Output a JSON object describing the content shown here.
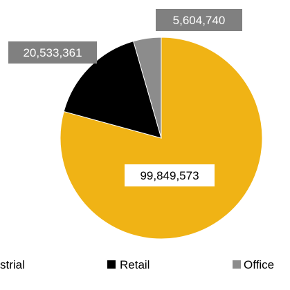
{
  "chart_data": {
    "type": "pie",
    "title": "",
    "slices": [
      {
        "label": "Industrial",
        "value": 99849573,
        "display": "99,849,573",
        "color": "#F0B315"
      },
      {
        "label": "Retail",
        "value": 20533361,
        "display": "20,533,361",
        "color": "#000000"
      },
      {
        "label": "Office",
        "value": 5604740,
        "display": "5,604,740",
        "color": "#8C8C8C"
      }
    ],
    "legend": {
      "position": "bottom",
      "visible_texts": [
        "strial",
        "Retail",
        "Office"
      ]
    },
    "data_label_style": {
      "industrial_box": "#ffffff",
      "industrial_text": "#000000",
      "other_box": "#808080",
      "other_text": "#ffffff"
    }
  }
}
